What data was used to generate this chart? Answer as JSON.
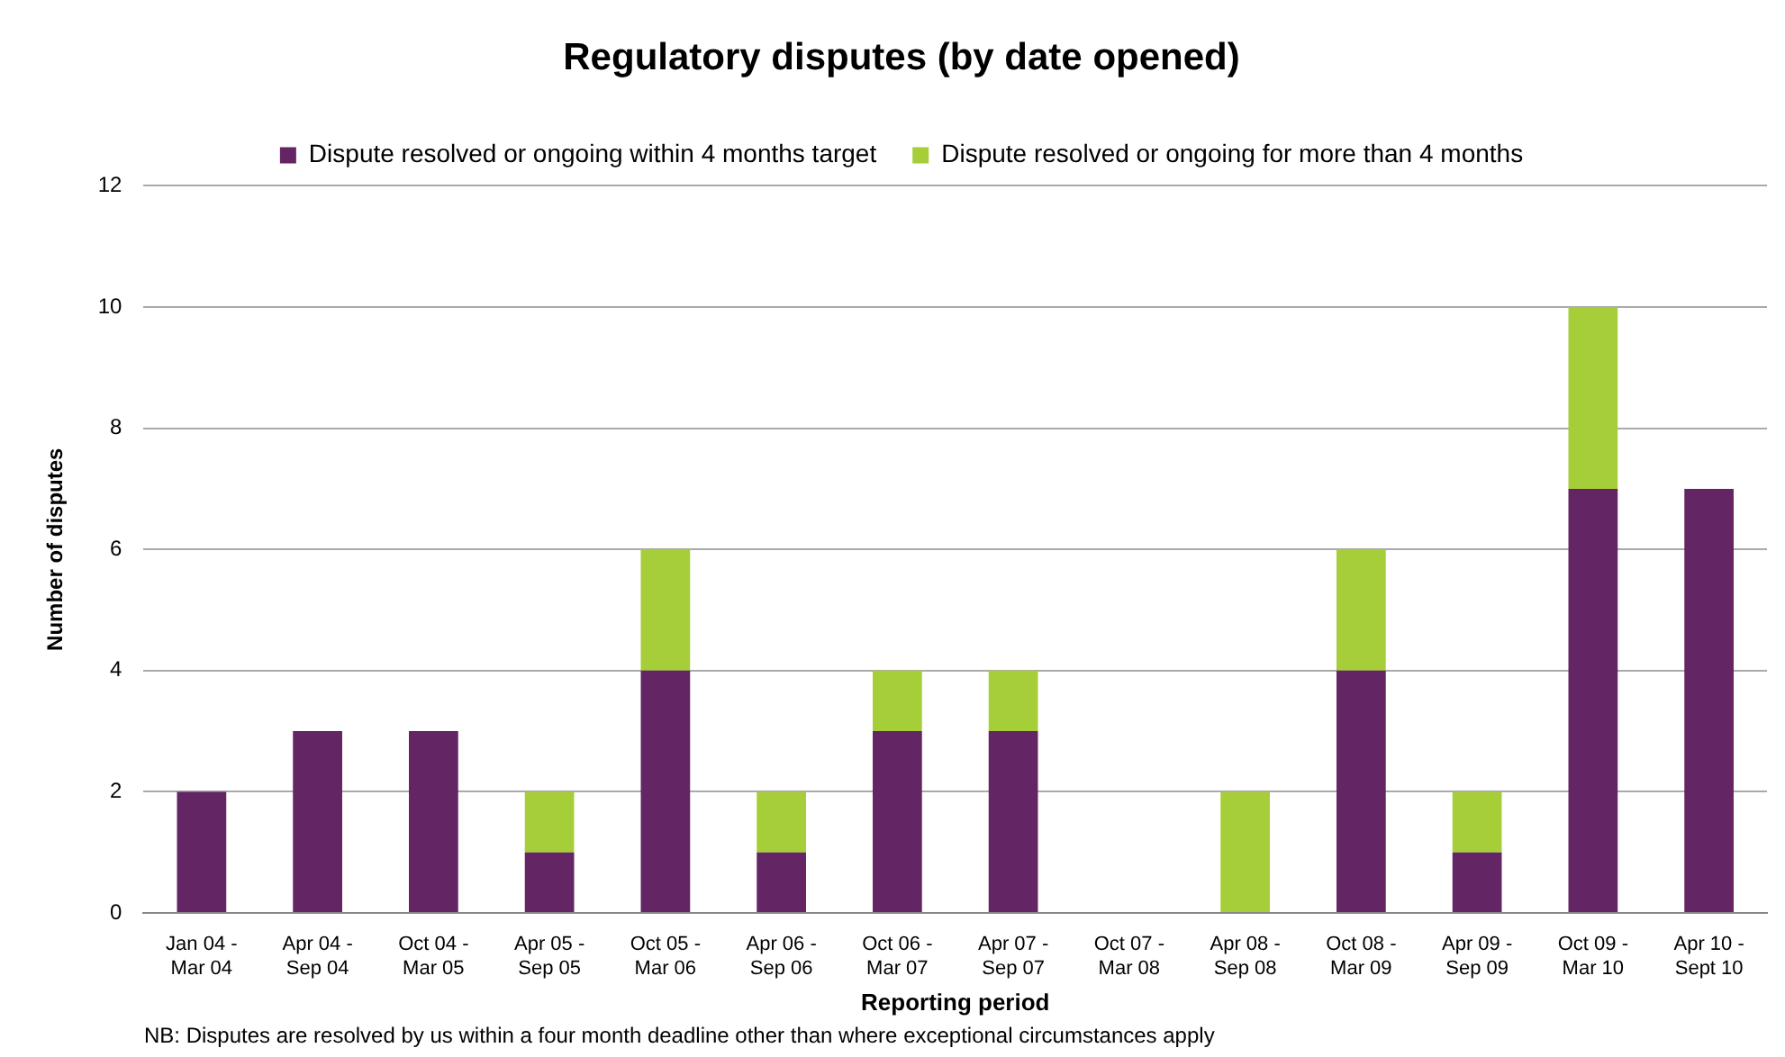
{
  "chart_data": {
    "type": "bar",
    "title": "Regulatory disputes (by date opened)",
    "xlabel": "Reporting period",
    "ylabel": "Number of disputes",
    "categories": [
      "Jan 04 - Mar 04",
      "Apr 04 - Sep 04",
      "Oct 04 - Mar 05",
      "Apr 05 - Sep 05",
      "Oct 05 - Mar 06",
      "Apr 06 - Sep 06",
      "Oct 06 - Mar 07",
      "Apr 07 - Sep 07",
      "Oct 07 - Mar 08",
      "Apr 08 - Sep 08",
      "Oct 08 - Mar 09",
      "Apr 09 - Sep 09",
      "Oct 09 - Mar 10",
      "Apr 10 - Sept 10"
    ],
    "series": [
      {
        "name": "Dispute resolved or ongoing within 4 months target",
        "color": "#632563",
        "values": [
          2,
          3,
          3,
          1,
          4,
          1,
          3,
          3,
          0,
          0,
          4,
          1,
          7,
          7
        ]
      },
      {
        "name": "Dispute resolved or ongoing for more than 4 months",
        "color": "#a6ce39",
        "values": [
          0,
          0,
          0,
          1,
          2,
          1,
          1,
          1,
          0,
          2,
          2,
          1,
          3,
          0
        ]
      }
    ],
    "stacked": true,
    "ylim": [
      0,
      12
    ],
    "yticks": [
      0,
      2,
      4,
      6,
      8,
      10,
      12
    ],
    "grid": "y",
    "legend": "top",
    "annotations": [
      "NB: Disputes are resolved by us within a four month deadline other than where exceptional circumstances apply"
    ]
  }
}
